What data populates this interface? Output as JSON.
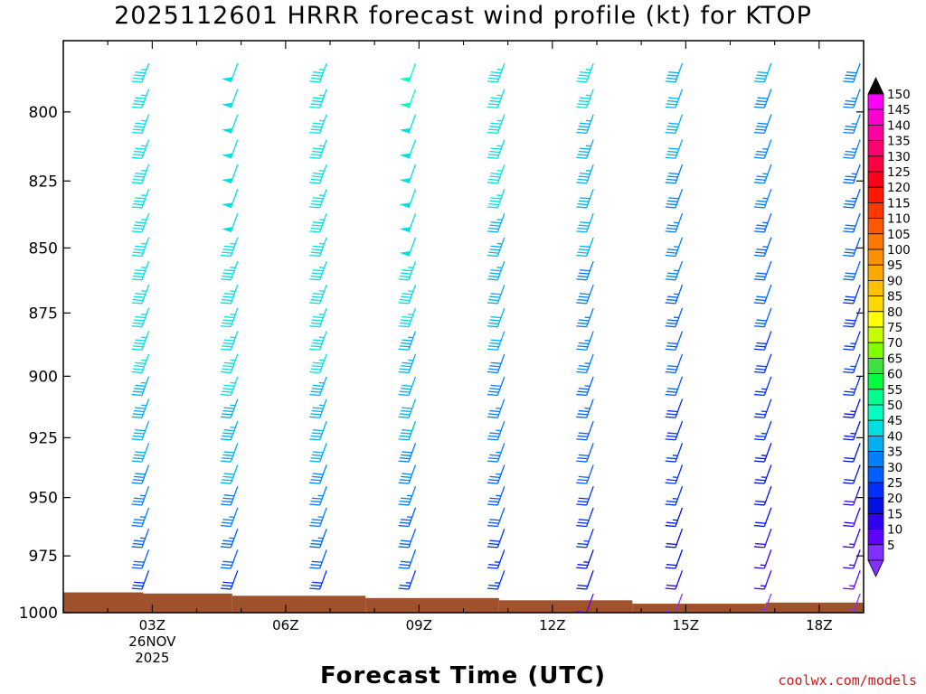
{
  "title": "2025112601 HRRR forecast wind profile (kt) for KTOP",
  "credit": "coolwx.com/models",
  "chart_data": {
    "type": "wind_profile",
    "title": "2025112601 HRRR forecast wind profile (kt) for KTOP",
    "xlabel": "Forecast Time (UTC)",
    "ylabel": "",
    "x_range": [
      1,
      19
    ],
    "y_range_hPa": [
      775,
      1000
    ],
    "y_ticks": [
      800,
      825,
      850,
      875,
      900,
      925,
      950,
      975,
      1000
    ],
    "x_ticks": [
      {
        "hour": 3,
        "label": "03Z",
        "sublabels": [
          "26NOV",
          "2025"
        ]
      },
      {
        "hour": 6,
        "label": "06Z"
      },
      {
        "hour": 9,
        "label": "09Z"
      },
      {
        "hour": 12,
        "label": "12Z"
      },
      {
        "hour": 15,
        "label": "15Z"
      },
      {
        "hour": 18,
        "label": "18Z"
      }
    ],
    "times": [
      2.8,
      4.8,
      6.8,
      8.8,
      10.8,
      12.8,
      14.8,
      16.8,
      18.8
    ],
    "levels": [
      781,
      790,
      799,
      808,
      817,
      826,
      835,
      844,
      853,
      862,
      871,
      880,
      889,
      898,
      907,
      916,
      925,
      934,
      943,
      952,
      961,
      970,
      979
    ],
    "speeds_kt": [
      [
        47,
        47,
        47,
        46,
        45,
        45,
        45,
        45,
        45,
        45,
        45,
        45,
        45,
        44,
        43,
        42,
        41,
        39,
        37,
        35,
        33,
        31,
        28
      ],
      [
        48,
        48,
        48,
        48,
        48,
        48,
        48,
        47,
        47,
        47,
        47,
        47,
        46,
        45,
        44,
        43,
        42,
        40,
        38,
        36,
        34,
        32,
        29
      ],
      [
        47,
        47,
        47,
        47,
        47,
        47,
        47,
        47,
        47,
        47,
        47,
        46,
        45,
        44,
        43,
        42,
        41,
        39,
        37,
        35,
        33,
        31,
        28
      ],
      [
        50,
        50,
        49,
        49,
        49,
        48,
        48,
        48,
        47,
        46,
        45,
        44,
        43,
        42,
        41,
        40,
        39,
        38,
        36,
        34,
        32,
        30,
        27
      ],
      [
        46,
        46,
        45,
        45,
        45,
        45,
        44,
        44,
        43,
        42,
        41,
        40,
        39,
        38,
        37,
        36,
        35,
        34,
        33,
        31,
        29,
        27,
        25
      ],
      [
        45,
        45,
        44,
        44,
        43,
        42,
        41,
        40,
        39,
        38,
        37,
        36,
        35,
        34,
        33,
        32,
        31,
        30,
        29,
        28,
        26,
        24,
        21
      ],
      [
        42,
        42,
        41,
        40,
        39,
        38,
        37,
        36,
        35,
        34,
        33,
        32,
        31,
        30,
        29,
        28,
        27,
        26,
        25,
        24,
        22,
        20,
        18
      ],
      [
        40,
        39,
        38,
        37,
        36,
        35,
        34,
        33,
        32,
        31,
        30,
        29,
        28,
        27,
        26,
        25,
        24,
        23,
        22,
        21,
        19,
        17,
        15
      ],
      [
        38,
        37,
        36,
        35,
        34,
        33,
        32,
        31,
        30,
        29,
        28,
        27,
        26,
        25,
        24,
        23,
        21,
        20,
        19,
        18,
        16,
        15,
        13
      ]
    ],
    "near_surface": [
      {
        "time": 12.8,
        "level": 990,
        "speed_kt": 10
      },
      {
        "time": 14.8,
        "level": 990,
        "speed_kt": 8
      },
      {
        "time": 16.8,
        "level": 990,
        "speed_kt": 7
      },
      {
        "time": 18.8,
        "level": 990,
        "speed_kt": 6
      }
    ],
    "terrain": {
      "color": "#a0522d",
      "steps": [
        {
          "t0": 1,
          "t1": 2.8,
          "p": 991
        },
        {
          "t0": 2.8,
          "t1": 4.8,
          "p": 991.5
        },
        {
          "t0": 4.8,
          "t1": 7.8,
          "p": 992.5
        },
        {
          "t0": 7.8,
          "t1": 10.8,
          "p": 993.5
        },
        {
          "t0": 10.8,
          "t1": 13.8,
          "p": 994.5
        },
        {
          "t0": 13.8,
          "t1": 16.8,
          "p": 996
        },
        {
          "t0": 16.8,
          "t1": 19,
          "p": 995.5
        }
      ]
    },
    "colorbar": {
      "labels": [
        "150",
        "145",
        "140",
        "135",
        "130",
        "125",
        "120",
        "115",
        "110",
        "105",
        "100",
        "95",
        "90",
        "85",
        "80",
        "75",
        "70",
        "65",
        "60",
        "55",
        "50",
        "45",
        "40",
        "35",
        "30",
        "25",
        "20",
        "15",
        "10",
        "5"
      ],
      "colors": [
        "#ff00ff",
        "#ff00d0",
        "#ff00a0",
        "#ff0070",
        "#ff0040",
        "#ff0018",
        "#ff1800",
        "#ff3800",
        "#ff5800",
        "#ff7800",
        "#ff9000",
        "#ffa800",
        "#ffc000",
        "#ffd800",
        "#ffff00",
        "#c8ff00",
        "#80ff00",
        "#40e040",
        "#00ff40",
        "#00ff90",
        "#00ffc0",
        "#00e0e0",
        "#00b0f0",
        "#0080ff",
        "#0060ff",
        "#0030ff",
        "#0010e0",
        "#3000f0",
        "#6000ff",
        "#8030ff"
      ],
      "top_arrow": "#000000",
      "bottom_arrow": "#8030ff"
    }
  }
}
